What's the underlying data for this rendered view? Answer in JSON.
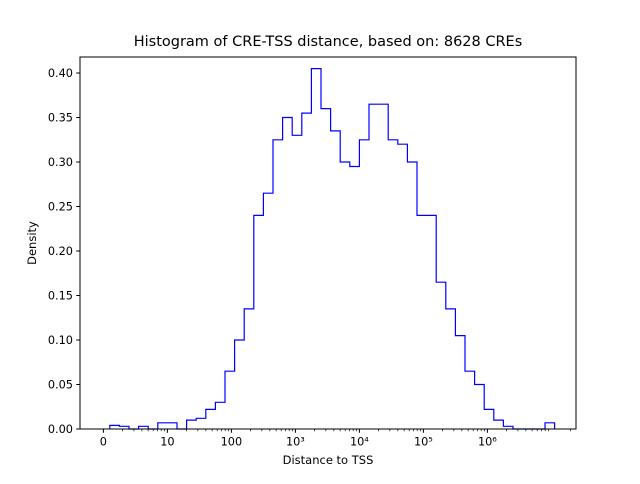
{
  "figure": {
    "title": "Histogram of CRE-TSS distance, based on: 8628 CREs"
  },
  "chart_data": {
    "type": "histogram",
    "histtype": "step",
    "title": "Histogram of CRE-TSS distance, based on: 8628 CREs",
    "xlabel": "Distance to TSS",
    "ylabel": "Density",
    "n_samples": 8628,
    "line_color": "#0000ff",
    "axis_color": "#000000",
    "background": "#ffffff",
    "x_scale": "log-like, u = log10(distance); tick '0' sits at u=0",
    "x_ticks": [
      {
        "u": 0,
        "label": "0"
      },
      {
        "u": 1,
        "label": "10"
      },
      {
        "u": 2,
        "label": "100"
      },
      {
        "u": 3,
        "label": "10³"
      },
      {
        "u": 4,
        "label": "10⁴"
      },
      {
        "u": 5,
        "label": "10⁵"
      },
      {
        "u": 6,
        "label": "10⁶"
      }
    ],
    "y_ticks": [
      {
        "v": 0.0,
        "label": "0.00"
      },
      {
        "v": 0.05,
        "label": "0.05"
      },
      {
        "v": 0.1,
        "label": "0.10"
      },
      {
        "v": 0.15,
        "label": "0.15"
      },
      {
        "v": 0.2,
        "label": "0.20"
      },
      {
        "v": 0.25,
        "label": "0.25"
      },
      {
        "v": 0.3,
        "label": "0.30"
      },
      {
        "v": 0.35,
        "label": "0.35"
      },
      {
        "v": 0.4,
        "label": "0.40"
      }
    ],
    "xlim_u": [
      -0.365,
      7.385
    ],
    "ylim": [
      0,
      0.418
    ],
    "bin_edges_u": [
      0.1,
      0.25,
      0.4,
      0.55,
      0.7,
      0.85,
      1.0,
      1.15,
      1.3,
      1.45,
      1.6,
      1.75,
      1.9,
      2.05,
      2.2,
      2.35,
      2.5,
      2.65,
      2.8,
      2.95,
      3.1,
      3.25,
      3.4,
      3.55,
      3.7,
      3.85,
      4.0,
      4.15,
      4.3,
      4.45,
      4.6,
      4.75,
      4.9,
      5.05,
      5.2,
      5.35,
      5.5,
      5.65,
      5.8,
      5.95,
      6.1,
      6.25,
      6.4,
      6.9,
      7.05
    ],
    "densities": [
      0.004,
      0.003,
      0,
      0.003,
      0,
      0.007,
      0.007,
      0,
      0.01,
      0.012,
      0.022,
      0.03,
      0.065,
      0.1,
      0.135,
      0.24,
      0.265,
      0.325,
      0.35,
      0.33,
      0.355,
      0.405,
      0.36,
      0.335,
      0.3,
      0.295,
      0.325,
      0.365,
      0.365,
      0.325,
      0.32,
      0.3,
      0.24,
      0.24,
      0.165,
      0.135,
      0.105,
      0.065,
      0.05,
      0.022,
      0.01,
      0.003,
      0,
      0.007
    ]
  }
}
